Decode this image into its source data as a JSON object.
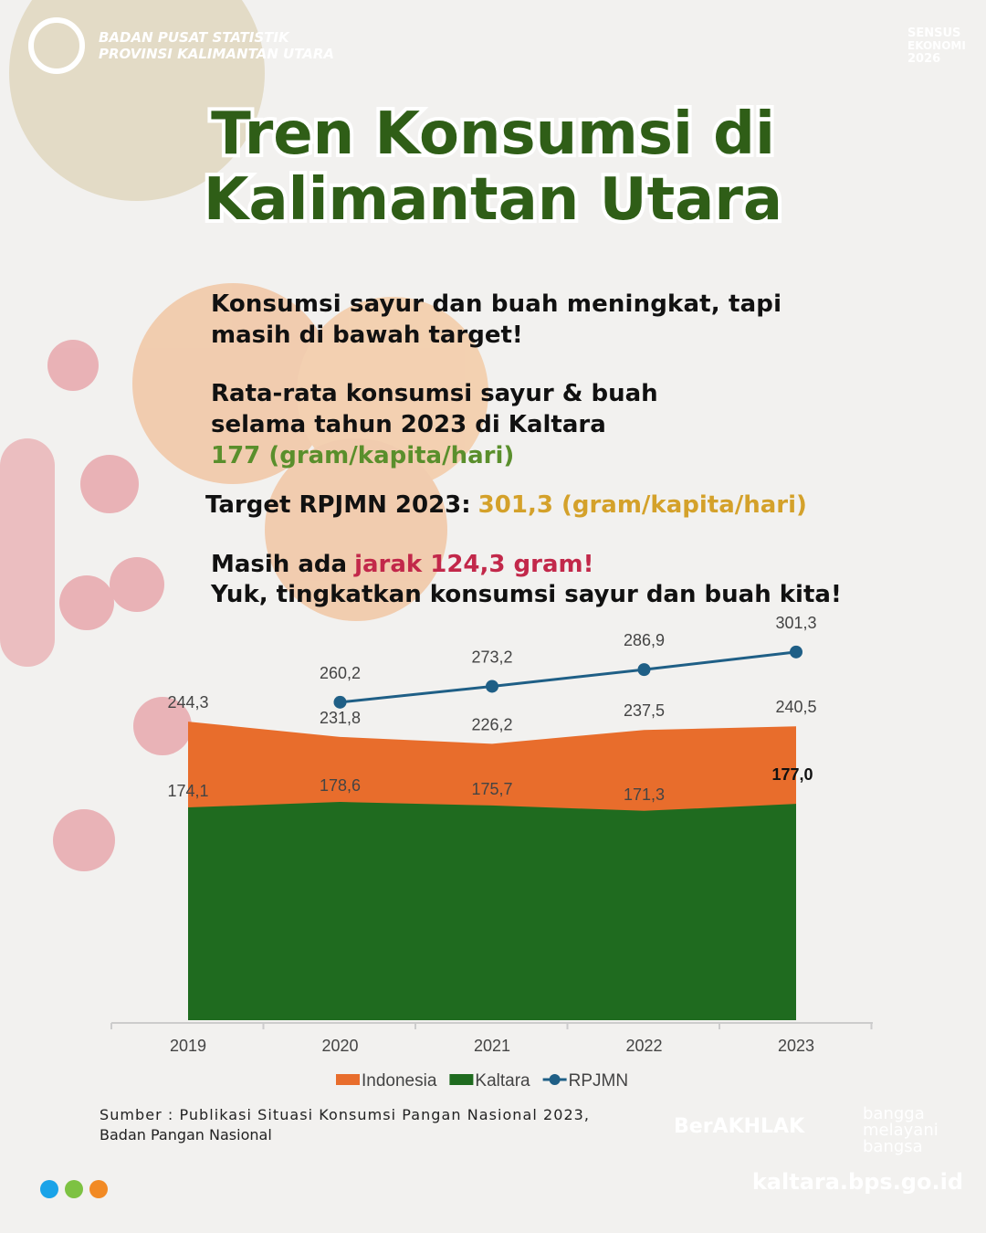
{
  "header": {
    "org": [
      "BADAN PUSAT STATISTIK",
      "PROVINSI KALIMANTAN UTARA"
    ],
    "census": [
      "SENSUS",
      "EKONOMI",
      "2026"
    ]
  },
  "title": [
    "Tren Konsumsi di",
    "Kalimantan Utara"
  ],
  "text": {
    "p1": [
      "Konsumsi sayur dan buah meningkat, tapi",
      "masih di bawah target!"
    ],
    "p2": [
      "Rata-rata konsumsi sayur & buah",
      "selama tahun 2023 di Kaltara",
      "177 (gram/kapita/hari)"
    ],
    "p3": [
      "Target RPJMN 2023:",
      "301,3 (gram/kapita/hari)"
    ],
    "p4": [
      "Masih ada",
      "jarak 124,3 gram!",
      "Yuk, tingkatkan konsumsi sayur dan buah kita!"
    ]
  },
  "chart_data": {
    "type": "area",
    "categories": [
      "2019",
      "2020",
      "2021",
      "2022",
      "2023"
    ],
    "series": [
      {
        "name": "Indonesia",
        "color": "#e86d2c",
        "values": [
          244.3,
          231.8,
          226.2,
          237.5,
          240.5
        ],
        "value_labels": [
          "244,3",
          "231,8",
          "226,2",
          "237,5",
          "240,5"
        ]
      },
      {
        "name": "Kaltara",
        "color": "#1f6b1f",
        "values": [
          174.1,
          178.6,
          175.7,
          171.3,
          177.0
        ],
        "value_labels": [
          "174,1",
          "178,6",
          "175,7",
          "171,3",
          "177,0"
        ]
      },
      {
        "name": "RPJMN",
        "color": "#1f5f86",
        "type": "line",
        "values": [
          null,
          260.2,
          273.2,
          286.9,
          301.3
        ],
        "value_labels": [
          null,
          "260,2",
          "273,2",
          "286,9",
          "301,3"
        ]
      }
    ]
  },
  "source": [
    "Sumber : Publikasi Situasi Konsumsi Pangan Nasional 2023,",
    "Badan Pangan Nasional"
  ],
  "footer": {
    "berakhlak": "BerAKHLAK",
    "tagline": [
      "bangga",
      "melayani",
      "bangsa"
    ],
    "url": "kaltara.bps.go.id"
  }
}
